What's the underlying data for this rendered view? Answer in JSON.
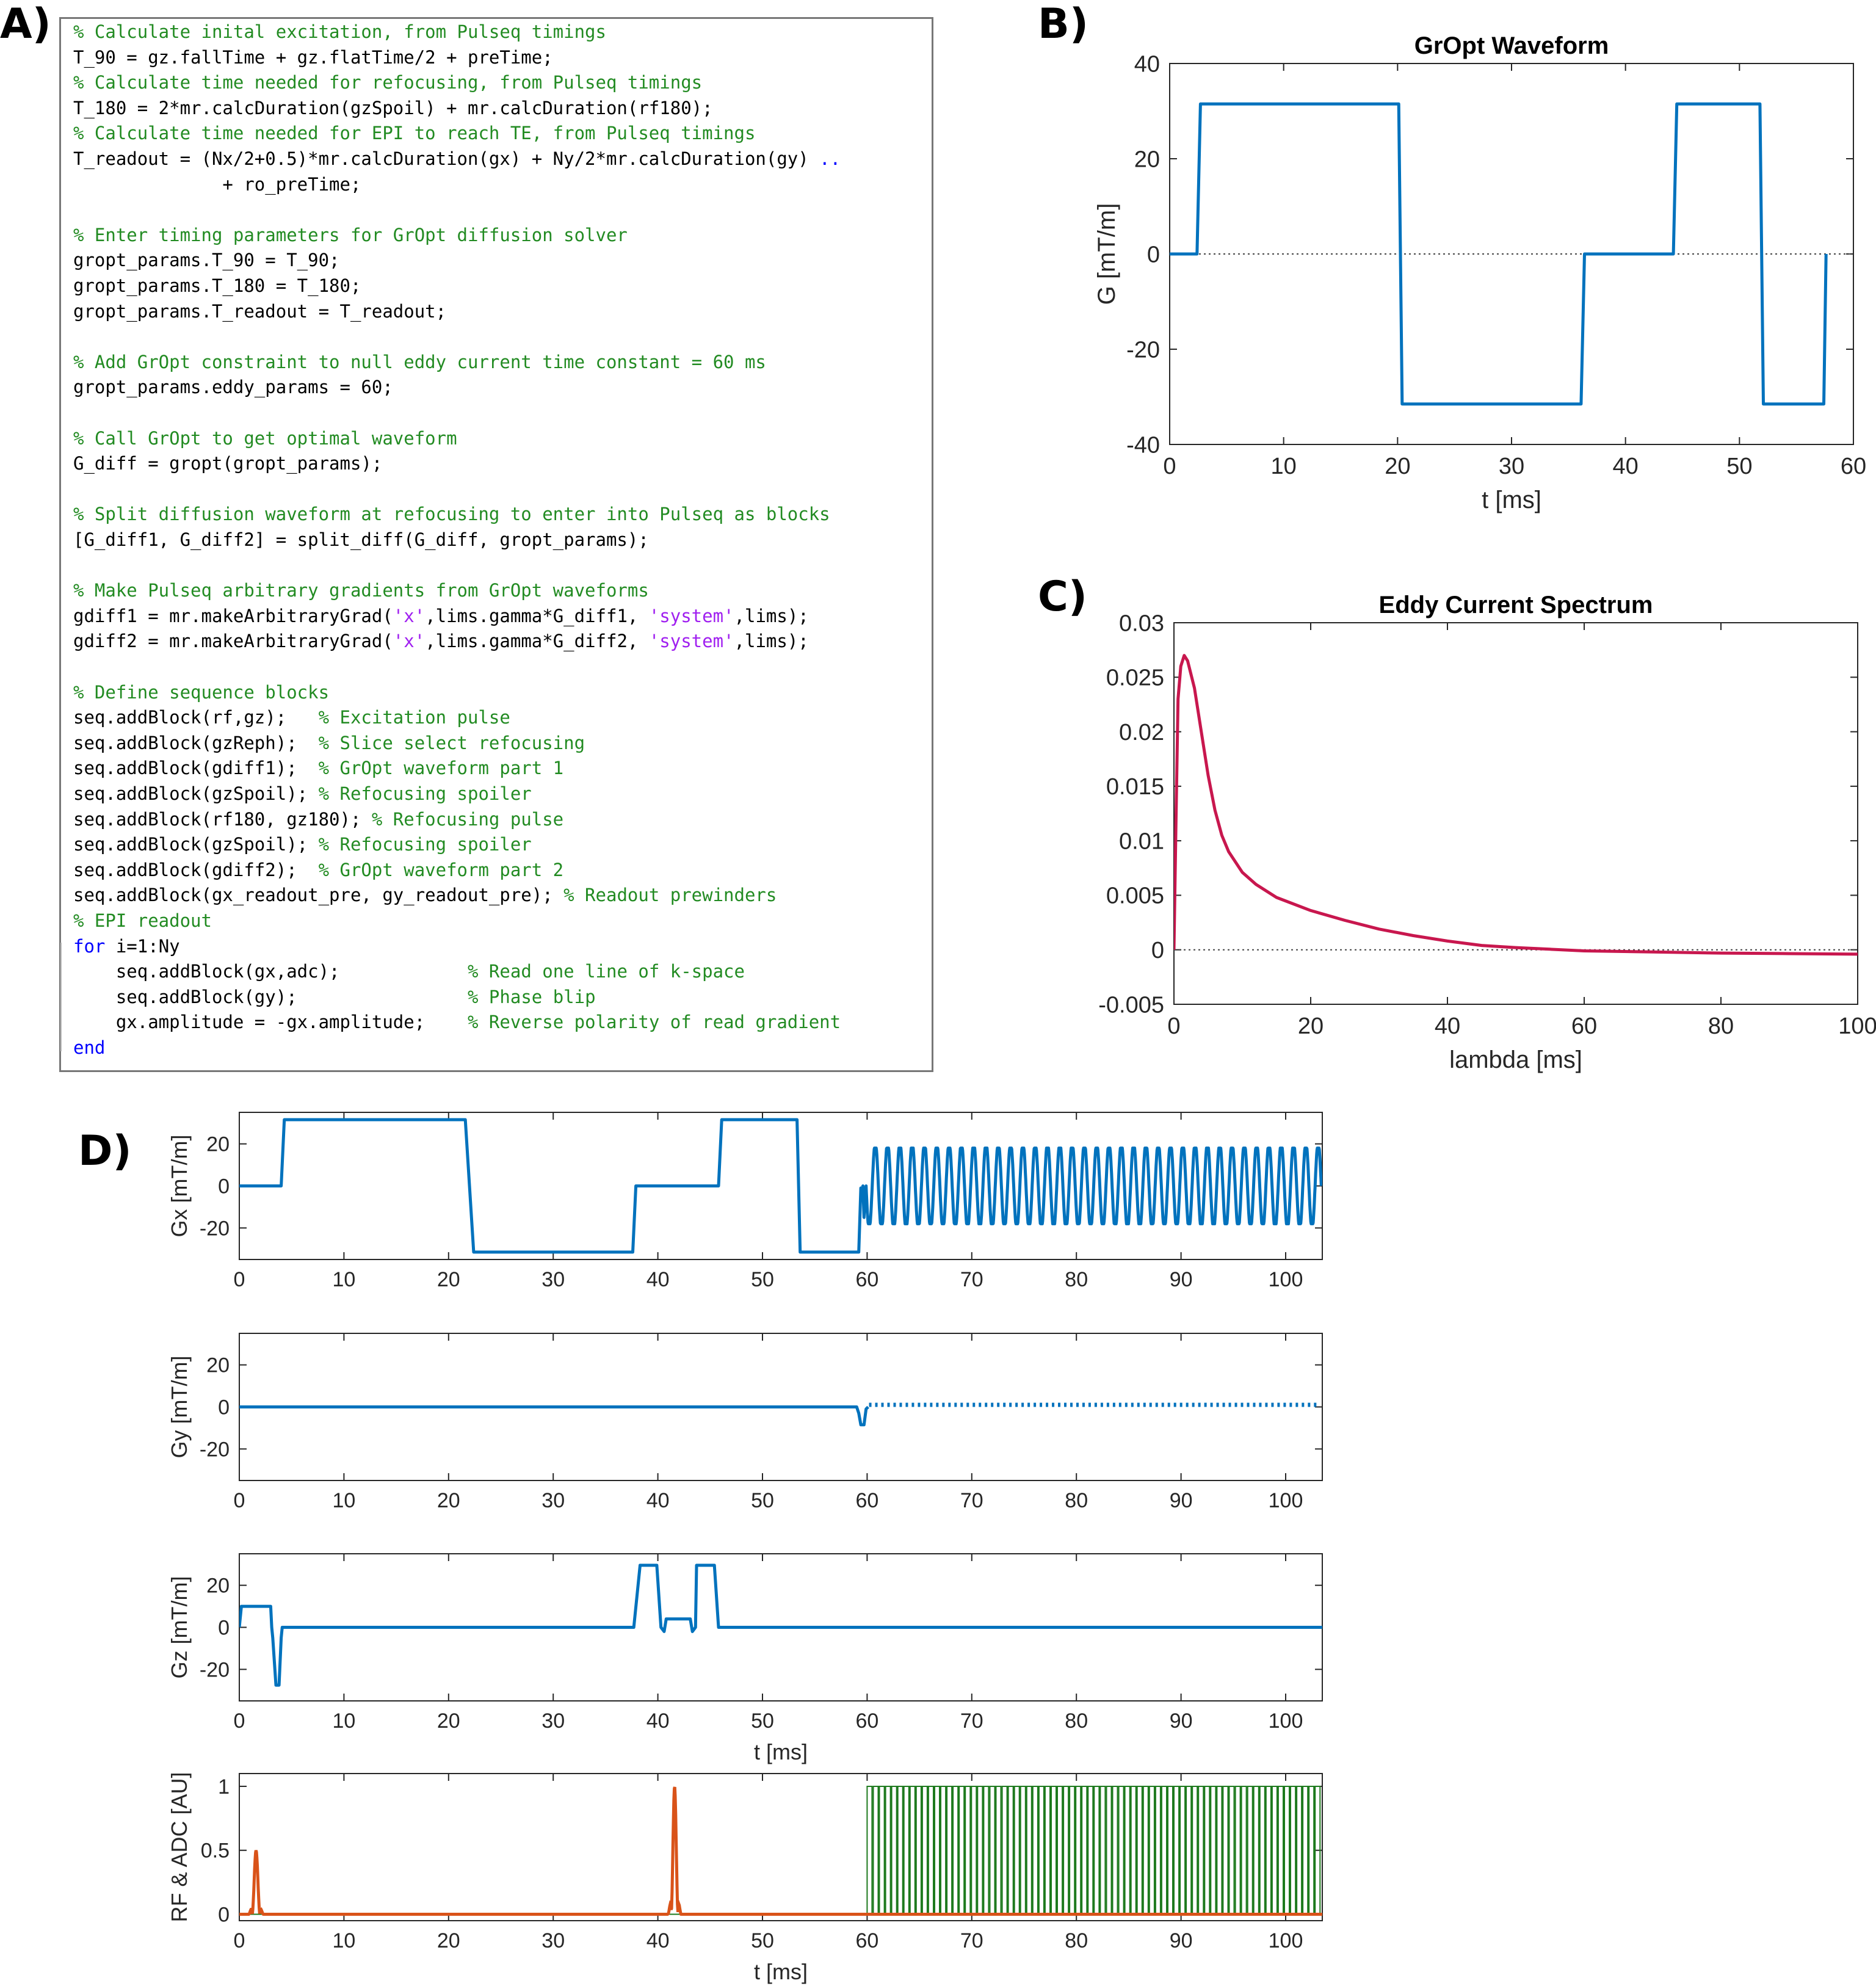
{
  "panels": {
    "a": "A)",
    "b": "B)",
    "c": "C)",
    "d": "D)"
  },
  "code": {
    "lines": [
      [
        {
          "t": "% Calculate inital excitation, from Pulseq timings",
          "k": "comment"
        }
      ],
      [
        {
          "t": "T_90 = gz.fallTime + gz.flatTime/2 + preTime;",
          "k": "code"
        }
      ],
      [
        {
          "t": "% Calculate time needed for refocusing, from Pulseq timings",
          "k": "comment"
        }
      ],
      [
        {
          "t": "T_180 = 2*mr.calcDuration(gzSpoil) + mr.calcDuration(rf180);",
          "k": "code"
        }
      ],
      [
        {
          "t": "% Calculate time needed for EPI to reach TE, from Pulseq timings",
          "k": "comment"
        }
      ],
      [
        {
          "t": "T_readout = (Nx/2+0.5)*mr.calcDuration(gx) + Ny/2*mr.calcDuration(gy) ",
          "k": "code"
        },
        {
          "t": "..",
          "k": "cont"
        }
      ],
      [
        {
          "t": "              + ro_preTime;",
          "k": "code"
        }
      ],
      [],
      [
        {
          "t": "% Enter timing parameters for GrOpt diffusion solver",
          "k": "comment"
        }
      ],
      [
        {
          "t": "gropt_params.T_90 = T_90;",
          "k": "code"
        }
      ],
      [
        {
          "t": "gropt_params.T_180 = T_180;",
          "k": "code"
        }
      ],
      [
        {
          "t": "gropt_params.T_readout = T_readout;",
          "k": "code"
        }
      ],
      [],
      [
        {
          "t": "% Add GrOpt constraint to null eddy current time constant = 60 ms",
          "k": "comment"
        }
      ],
      [
        {
          "t": "gropt_params.eddy_params = 60;",
          "k": "code"
        }
      ],
      [],
      [
        {
          "t": "% Call GrOpt to get optimal waveform",
          "k": "comment"
        }
      ],
      [
        {
          "t": "G_diff = gropt(gropt_params);",
          "k": "code"
        }
      ],
      [],
      [
        {
          "t": "% Split diffusion waveform at refocusing to enter into Pulseq as blocks",
          "k": "comment"
        }
      ],
      [
        {
          "t": "[G_diff1, G_diff2] = split_diff(G_diff, gropt_params);",
          "k": "code"
        }
      ],
      [],
      [
        {
          "t": "% Make Pulseq arbitrary gradients from GrOpt waveforms",
          "k": "comment"
        }
      ],
      [
        {
          "t": "gdiff1 = mr.makeArbitraryGrad(",
          "k": "code"
        },
        {
          "t": "'x'",
          "k": "string"
        },
        {
          "t": ",lims.gamma*G_diff1, ",
          "k": "code"
        },
        {
          "t": "'system'",
          "k": "string"
        },
        {
          "t": ",lims);",
          "k": "code"
        }
      ],
      [
        {
          "t": "gdiff2 = mr.makeArbitraryGrad(",
          "k": "code"
        },
        {
          "t": "'x'",
          "k": "string"
        },
        {
          "t": ",lims.gamma*G_diff2, ",
          "k": "code"
        },
        {
          "t": "'system'",
          "k": "string"
        },
        {
          "t": ",lims);",
          "k": "code"
        }
      ],
      [],
      [
        {
          "t": "% Define sequence blocks",
          "k": "comment"
        }
      ],
      [
        {
          "t": "seq.addBlock(rf,gz);   ",
          "k": "code"
        },
        {
          "t": "% Excitation pulse",
          "k": "comment"
        }
      ],
      [
        {
          "t": "seq.addBlock(gzReph);  ",
          "k": "code"
        },
        {
          "t": "% Slice select refocusing",
          "k": "comment"
        }
      ],
      [
        {
          "t": "seq.addBlock(gdiff1);  ",
          "k": "code"
        },
        {
          "t": "% GrOpt waveform part 1",
          "k": "comment"
        }
      ],
      [
        {
          "t": "seq.addBlock(gzSpoil); ",
          "k": "code"
        },
        {
          "t": "% Refocusing spoiler",
          "k": "comment"
        }
      ],
      [
        {
          "t": "seq.addBlock(rf180, gz180); ",
          "k": "code"
        },
        {
          "t": "% Refocusing pulse",
          "k": "comment"
        }
      ],
      [
        {
          "t": "seq.addBlock(gzSpoil); ",
          "k": "code"
        },
        {
          "t": "% Refocusing spoiler",
          "k": "comment"
        }
      ],
      [
        {
          "t": "seq.addBlock(gdiff2);  ",
          "k": "code"
        },
        {
          "t": "% GrOpt waveform part 2",
          "k": "comment"
        }
      ],
      [
        {
          "t": "seq.addBlock(gx_readout_pre, gy_readout_pre); ",
          "k": "code"
        },
        {
          "t": "% Readout prewinders",
          "k": "comment"
        }
      ],
      [
        {
          "t": "% EPI readout",
          "k": "comment"
        }
      ],
      [
        {
          "t": "for",
          "k": "keyword"
        },
        {
          "t": " i=1:Ny",
          "k": "code"
        }
      ],
      [
        {
          "t": "    seq.addBlock(gx,adc);            ",
          "k": "code"
        },
        {
          "t": "% Read one line of k-space",
          "k": "comment"
        }
      ],
      [
        {
          "t": "    seq.addBlock(gy);                ",
          "k": "code"
        },
        {
          "t": "% Phase blip",
          "k": "comment"
        }
      ],
      [
        {
          "t": "    gx.amplitude = -gx.amplitude;    ",
          "k": "code"
        },
        {
          "t": "% Reverse polarity of read gradient",
          "k": "comment"
        }
      ],
      [
        {
          "t": "end",
          "k": "keyword"
        }
      ]
    ]
  },
  "colors": {
    "blue": "#0072bd",
    "crimson": "#c8174e",
    "orange": "#d95319",
    "green": "#1e7a1e"
  },
  "chart_data": [
    {
      "id": "gropt",
      "type": "line",
      "title": "GrOpt Waveform",
      "xlabel": "t [ms]",
      "ylabel": "G [mT/m]",
      "xlim": [
        0,
        60
      ],
      "ylim": [
        -40,
        40
      ],
      "xticks": [
        0,
        10,
        20,
        30,
        40,
        50,
        60
      ],
      "yticks": [
        -40,
        -20,
        0,
        20,
        40
      ],
      "zero_line": true,
      "series": [
        {
          "name": "G",
          "color": "#0072bd",
          "points": [
            [
              0,
              0
            ],
            [
              2.4,
              0
            ],
            [
              2.7,
              31.5
            ],
            [
              20.1,
              31.5
            ],
            [
              20.4,
              -31.5
            ],
            [
              36.1,
              -31.5
            ],
            [
              36.4,
              0
            ],
            [
              44.2,
              0
            ],
            [
              44.5,
              31.5
            ],
            [
              51.8,
              31.5
            ],
            [
              52.1,
              -31.5
            ],
            [
              57.4,
              -31.5
            ],
            [
              57.6,
              0
            ]
          ]
        }
      ]
    },
    {
      "id": "eddy",
      "type": "line",
      "title": "Eddy Current Spectrum",
      "xlabel": "lambda [ms]",
      "ylabel": "",
      "xlim": [
        0,
        100
      ],
      "ylim": [
        -0.005,
        0.03
      ],
      "xticks": [
        0,
        20,
        40,
        60,
        80,
        100
      ],
      "yticks": [
        -0.005,
        0,
        0.005,
        0.01,
        0.015,
        0.02,
        0.025,
        0.03
      ],
      "ytick_labels": [
        "-0.005",
        "0",
        "0.005",
        "0.01",
        "0.015",
        "0.02",
        "0.025",
        "0.03"
      ],
      "zero_line": true,
      "series": [
        {
          "name": "spectrum",
          "color": "#c8174e",
          "points": [
            [
              0,
              0
            ],
            [
              0.3,
              0.012
            ],
            [
              0.6,
              0.023
            ],
            [
              1,
              0.026
            ],
            [
              1.5,
              0.027
            ],
            [
              2,
              0.0265
            ],
            [
              3,
              0.024
            ],
            [
              4,
              0.02
            ],
            [
              5,
              0.016
            ],
            [
              6,
              0.0128
            ],
            [
              7,
              0.0105
            ],
            [
              8,
              0.009
            ],
            [
              10,
              0.0071
            ],
            [
              12,
              0.006
            ],
            [
              15,
              0.0048
            ],
            [
              20,
              0.0036
            ],
            [
              25,
              0.0027
            ],
            [
              30,
              0.0019
            ],
            [
              35,
              0.0013
            ],
            [
              40,
              0.0008
            ],
            [
              45,
              0.0004
            ],
            [
              50,
              0.0002
            ],
            [
              55,
              5e-05
            ],
            [
              60,
              -0.0001
            ],
            [
              70,
              -0.0002
            ],
            [
              80,
              -0.0003
            ],
            [
              90,
              -0.00035
            ],
            [
              100,
              -0.0004
            ]
          ]
        }
      ]
    },
    {
      "id": "gx",
      "type": "line",
      "xlabel": "",
      "ylabel": "Gx [mT/m]",
      "xlim": [
        0,
        103.5
      ],
      "ylim": [
        -35,
        35
      ],
      "xticks": [
        0,
        10,
        20,
        30,
        40,
        50,
        60,
        70,
        80,
        90,
        100
      ],
      "yticks": [
        -20,
        0,
        20
      ],
      "series": [
        {
          "name": "Gx",
          "color": "#0072bd",
          "points": [
            [
              0,
              0
            ],
            [
              4,
              0
            ],
            [
              4.3,
              31.5
            ],
            [
              21.6,
              31.5
            ],
            [
              22.4,
              -31.5
            ],
            [
              37.6,
              -31.5
            ],
            [
              37.9,
              0
            ],
            [
              45.8,
              0
            ],
            [
              46.1,
              31.5
            ],
            [
              53.3,
              31.5
            ],
            [
              53.6,
              -31.5
            ],
            [
              59.2,
              -31.5
            ],
            [
              59.4,
              -1
            ],
            [
              59.5,
              -5
            ],
            [
              59.6,
              0
            ],
            [
              59.7,
              -15
            ],
            [
              59.8,
              -5
            ]
          ],
          "osc": {
            "start": 59.9,
            "end": 103.4,
            "amp": 18,
            "periods": 37
          }
        }
      ]
    },
    {
      "id": "gy",
      "type": "line",
      "xlabel": "",
      "ylabel": "Gy [mT/m]",
      "xlim": [
        0,
        103.5
      ],
      "ylim": [
        -35,
        35
      ],
      "xticks": [
        0,
        10,
        20,
        30,
        40,
        50,
        60,
        70,
        80,
        90,
        100
      ],
      "yticks": [
        -20,
        0,
        20
      ],
      "series": [
        {
          "name": "Gy",
          "color": "#0072bd",
          "points": [
            [
              0,
              0
            ],
            [
              59,
              0
            ],
            [
              59.2,
              -3
            ],
            [
              59.4,
              -8.5
            ],
            [
              59.7,
              -8.5
            ],
            [
              59.9,
              -1
            ],
            [
              60.1,
              0
            ]
          ],
          "blips": {
            "start": 60.3,
            "end": 103.4,
            "count": 74,
            "amp": 2
          }
        }
      ]
    },
    {
      "id": "gz",
      "type": "line",
      "xlabel": "t [ms]",
      "ylabel": "Gz [mT/m]",
      "xlim": [
        0,
        103.5
      ],
      "ylim": [
        -35,
        35
      ],
      "xticks": [
        0,
        10,
        20,
        30,
        40,
        50,
        60,
        70,
        80,
        90,
        100
      ],
      "yticks": [
        -20,
        0,
        20
      ],
      "series": [
        {
          "name": "Gz",
          "color": "#0072bd",
          "points": [
            [
              0,
              0
            ],
            [
              0.2,
              10
            ],
            [
              3,
              10
            ],
            [
              3.1,
              0
            ],
            [
              3.2,
              -5
            ],
            [
              3.5,
              -27.5
            ],
            [
              3.8,
              -27.5
            ],
            [
              4,
              -5
            ],
            [
              4.1,
              0
            ],
            [
              37.7,
              0
            ],
            [
              38.3,
              29.5
            ],
            [
              39.9,
              29.5
            ],
            [
              40.3,
              0
            ],
            [
              40.6,
              -2
            ],
            [
              40.8,
              4
            ],
            [
              43.1,
              4
            ],
            [
              43.3,
              -2
            ],
            [
              43.6,
              0
            ],
            [
              43.7,
              29.5
            ],
            [
              45.4,
              29.5
            ],
            [
              45.8,
              0
            ],
            [
              103.5,
              0
            ]
          ]
        }
      ]
    },
    {
      "id": "rf",
      "type": "line",
      "xlabel": "t [ms]",
      "ylabel": "RF & ADC [AU]",
      "xlim": [
        0,
        103.5
      ],
      "ylim": [
        -0.05,
        1.1
      ],
      "xticks": [
        0,
        10,
        20,
        30,
        40,
        50,
        60,
        70,
        80,
        90,
        100
      ],
      "yticks": [
        0,
        0.5,
        1
      ],
      "ytick_labels": [
        "0",
        "0.5",
        "1"
      ],
      "series": [
        {
          "name": "ADC",
          "color": "#1e7a1e",
          "adc": {
            "start": 60,
            "end": 103.4,
            "count": 74,
            "level": 1
          }
        },
        {
          "name": "RF",
          "color": "#d95319",
          "pulses": [
            {
              "center": 1.6,
              "width": 0.9,
              "amp": 0.5
            },
            {
              "center": 41.6,
              "width": 0.8,
              "amp": 1
            }
          ]
        }
      ]
    }
  ]
}
